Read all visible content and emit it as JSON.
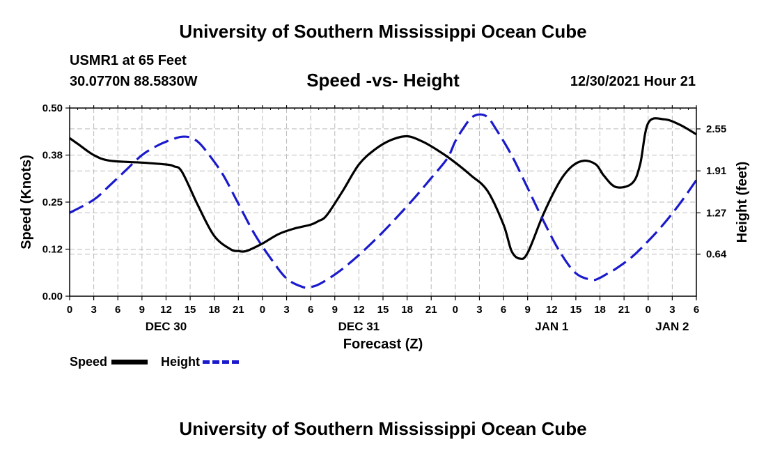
{
  "page_title": "University of Southern Mississippi Ocean Cube",
  "footer_title": "University of Southern Mississippi Ocean Cube",
  "station": "USMR1 at 65 Feet",
  "location": "30.0770N  88.5830W",
  "issued": "12/30/2021 Hour 21",
  "colors": {
    "speed": "#000000",
    "height": "#1a1acc",
    "grid": "#bbbbbb"
  },
  "chart_data": {
    "type": "line",
    "title": "Speed -vs- Height",
    "xlabel": "Forecast (Z)",
    "ylabel": "Speed (Knots)",
    "y2label": "Height (feet)",
    "x_unit": "hours from Dec 30 00Z",
    "xlim": [
      0,
      78
    ],
    "ylim": [
      0,
      0.5
    ],
    "y2lim": [
      0,
      2.868
    ],
    "x_ticks": [
      0,
      3,
      6,
      9,
      12,
      15,
      18,
      21,
      24,
      27,
      30,
      33,
      36,
      39,
      42,
      45,
      48,
      51,
      54,
      57,
      60,
      63,
      66,
      69,
      72,
      75,
      78
    ],
    "x_tick_labels": [
      "0",
      "3",
      "6",
      "9",
      "12",
      "15",
      "18",
      "21",
      "0",
      "3",
      "6",
      "9",
      "12",
      "15",
      "18",
      "21",
      "0",
      "3",
      "6",
      "9",
      "12",
      "15",
      "18",
      "21",
      "0",
      "3",
      "6"
    ],
    "y_ticks": [
      0,
      0.125,
      0.25,
      0.375,
      0.5
    ],
    "y_tick_labels": [
      "0.00",
      "0.12",
      "0.25",
      "0.38",
      "0.50"
    ],
    "y2_ticks": [
      0.64,
      1.27,
      1.91,
      2.55
    ],
    "y2_tick_labels": [
      "0.64",
      "1.27",
      "1.91",
      "2.55"
    ],
    "day_labels": [
      {
        "x": 12,
        "label": "DEC 30"
      },
      {
        "x": 36,
        "label": "DEC 31"
      },
      {
        "x": 60,
        "label": "JAN 1"
      },
      {
        "x": 75,
        "label": "JAN 2"
      }
    ],
    "series": [
      {
        "name": "Speed",
        "axis": "left",
        "style": "solid",
        "x": [
          0,
          1,
          3,
          5,
          9,
          12,
          13,
          14,
          16,
          18,
          20,
          21,
          22,
          24,
          26,
          28,
          30,
          31,
          32,
          34,
          36,
          38,
          40,
          42,
          44,
          46,
          48,
          50,
          52,
          54,
          55,
          56,
          57,
          59,
          61,
          62.5,
          64,
          65.5,
          66.5,
          68,
          70,
          71,
          72,
          74,
          76,
          78
        ],
        "values": [
          0.42,
          0.405,
          0.375,
          0.36,
          0.355,
          0.35,
          0.345,
          0.33,
          0.24,
          0.16,
          0.125,
          0.12,
          0.12,
          0.14,
          0.165,
          0.18,
          0.19,
          0.2,
          0.215,
          0.28,
          0.35,
          0.39,
          0.415,
          0.425,
          0.41,
          0.385,
          0.355,
          0.32,
          0.28,
          0.19,
          0.12,
          0.1,
          0.115,
          0.22,
          0.305,
          0.345,
          0.36,
          0.35,
          0.32,
          0.29,
          0.3,
          0.35,
          0.46,
          0.47,
          0.455,
          0.43
        ]
      },
      {
        "name": "Height",
        "axis": "right",
        "style": "dashed",
        "x": [
          0,
          3,
          5,
          7,
          9,
          11,
          13,
          14,
          15,
          16,
          17,
          19,
          21,
          23,
          25,
          27,
          29,
          30,
          31,
          33,
          35,
          37,
          39,
          41,
          43,
          45,
          47,
          48,
          49,
          50,
          51,
          52,
          53,
          55,
          57,
          59,
          61,
          63,
          65,
          66,
          67,
          68,
          70,
          72,
          74,
          76,
          78
        ],
        "values": [
          1.27,
          1.47,
          1.69,
          1.92,
          2.15,
          2.3,
          2.4,
          2.43,
          2.42,
          2.35,
          2.21,
          1.87,
          1.41,
          0.95,
          0.58,
          0.27,
          0.14,
          0.14,
          0.18,
          0.33,
          0.52,
          0.74,
          0.98,
          1.24,
          1.51,
          1.8,
          2.1,
          2.36,
          2.56,
          2.72,
          2.77,
          2.73,
          2.56,
          2.15,
          1.65,
          1.14,
          0.68,
          0.35,
          0.25,
          0.28,
          0.35,
          0.42,
          0.6,
          0.84,
          1.11,
          1.42,
          1.77
        ]
      }
    ],
    "legend": [
      {
        "label": "Speed",
        "style": "solid"
      },
      {
        "label": "Height",
        "style": "dashed"
      }
    ]
  }
}
